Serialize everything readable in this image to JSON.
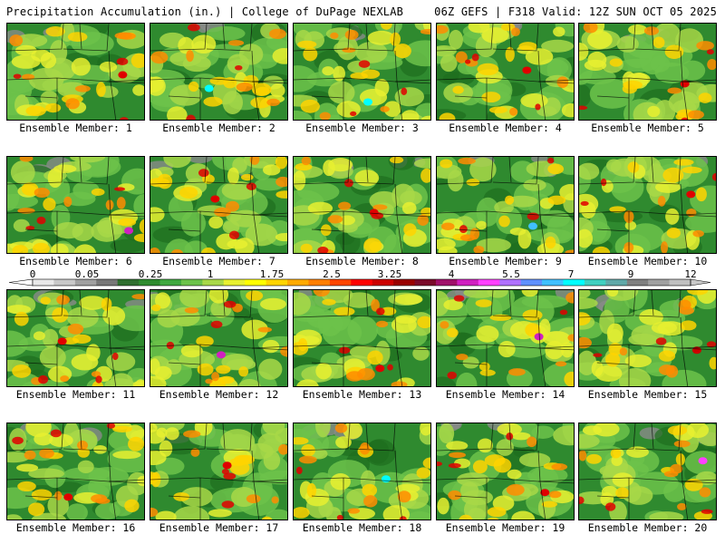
{
  "header": {
    "left": "Precipitation Accumulation (in.) | College of DuPage NEXLAB",
    "right": "06Z GEFS | F318 Valid: 12Z SUN OCT 05 2025"
  },
  "panel_label_prefix": "Ensemble Member: ",
  "chart_data": {
    "type": "heatmap",
    "title": "Precipitation Accumulation (in.)",
    "model": "06Z GEFS",
    "forecast_hour": "F318",
    "valid": "12Z SUN OCT 05 2025",
    "source": "College of DuPage NEXLAB",
    "units": "in.",
    "colorbar_ticks": [
      "0",
      "0.05",
      "0.25",
      "1",
      "1.75",
      "2.5",
      "3.25",
      "4",
      "5.5",
      "7",
      "9",
      "12"
    ],
    "colorbar_colors": [
      "#e8e8e8",
      "#c8c8c8",
      "#a0a0a0",
      "#787878",
      "#2f6f2f",
      "#2e8b2e",
      "#3fa83f",
      "#6cc24a",
      "#a8d848",
      "#e8f030",
      "#ffff00",
      "#ffd400",
      "#ffaa00",
      "#ff7f00",
      "#ff4500",
      "#ff0000",
      "#cc0000",
      "#990000",
      "#7a0a2a",
      "#a0106a",
      "#d020c0",
      "#ff40ff",
      "#b070ff",
      "#6090ff",
      "#40c0ff",
      "#00ffff",
      "#40d0c0",
      "#60a8a8",
      "#808080",
      "#a0a0a0",
      "#c0c0c0"
    ],
    "members": [
      {
        "id": 1,
        "max_color": "#e00000"
      },
      {
        "id": 2,
        "max_color": "#00ffff"
      },
      {
        "id": 3,
        "max_color": "#00ffff"
      },
      {
        "id": 4,
        "max_color": "#e00000"
      },
      {
        "id": 5,
        "max_color": "#e00000"
      },
      {
        "id": 6,
        "max_color": "#d020c0"
      },
      {
        "id": 7,
        "max_color": "#e00000"
      },
      {
        "id": 8,
        "max_color": "#e00000"
      },
      {
        "id": 9,
        "max_color": "#40c0ff"
      },
      {
        "id": 10,
        "max_color": "#e00000"
      },
      {
        "id": 11,
        "max_color": "#e00000"
      },
      {
        "id": 12,
        "max_color": "#d020c0"
      },
      {
        "id": 13,
        "max_color": "#e00000"
      },
      {
        "id": 14,
        "max_color": "#d020c0"
      },
      {
        "id": 15,
        "max_color": "#cc0000"
      },
      {
        "id": 16,
        "max_color": "#e00000"
      },
      {
        "id": 17,
        "max_color": "#e00000"
      },
      {
        "id": 18,
        "max_color": "#00ffff"
      },
      {
        "id": 19,
        "max_color": "#e00000"
      },
      {
        "id": 20,
        "max_color": "#ff40ff"
      }
    ]
  }
}
